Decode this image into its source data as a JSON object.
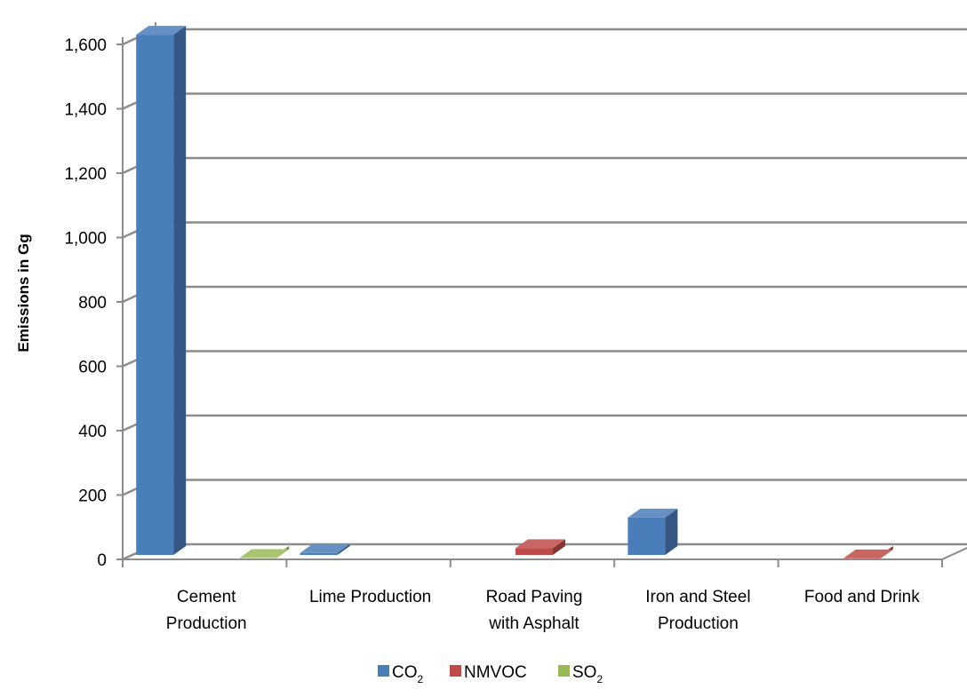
{
  "chart_data": {
    "type": "bar",
    "title": "",
    "xlabel": "",
    "ylabel": "Emissions in Gg",
    "ylim": [
      0,
      1600
    ],
    "yticks": [
      0,
      200,
      400,
      600,
      800,
      1000,
      1200,
      1400,
      1600
    ],
    "ytick_labels": [
      "0",
      "200",
      "400",
      "600",
      "800",
      "1,000",
      "1,200",
      "1,400",
      "1,600"
    ],
    "grid": true,
    "legend_position": "bottom",
    "categories": [
      [
        "Cement",
        "Production"
      ],
      [
        "Lime Production"
      ],
      [
        "Road Paving",
        "with Asphalt"
      ],
      [
        "Iron and Steel",
        "Production"
      ],
      [
        "Food and Drink"
      ]
    ],
    "series": [
      {
        "name": "CO",
        "subscript": "2",
        "color": "#4a7ebb",
        "values": [
          1630,
          20,
          0,
          130,
          0
        ]
      },
      {
        "name": "NMVOC",
        "subscript": "",
        "color": "#be4b48",
        "values": [
          0,
          0,
          35,
          0,
          3
        ]
      },
      {
        "name": "SO",
        "subscript": "2",
        "color": "#98b954",
        "values": [
          4,
          0,
          0,
          0,
          0
        ]
      }
    ]
  }
}
